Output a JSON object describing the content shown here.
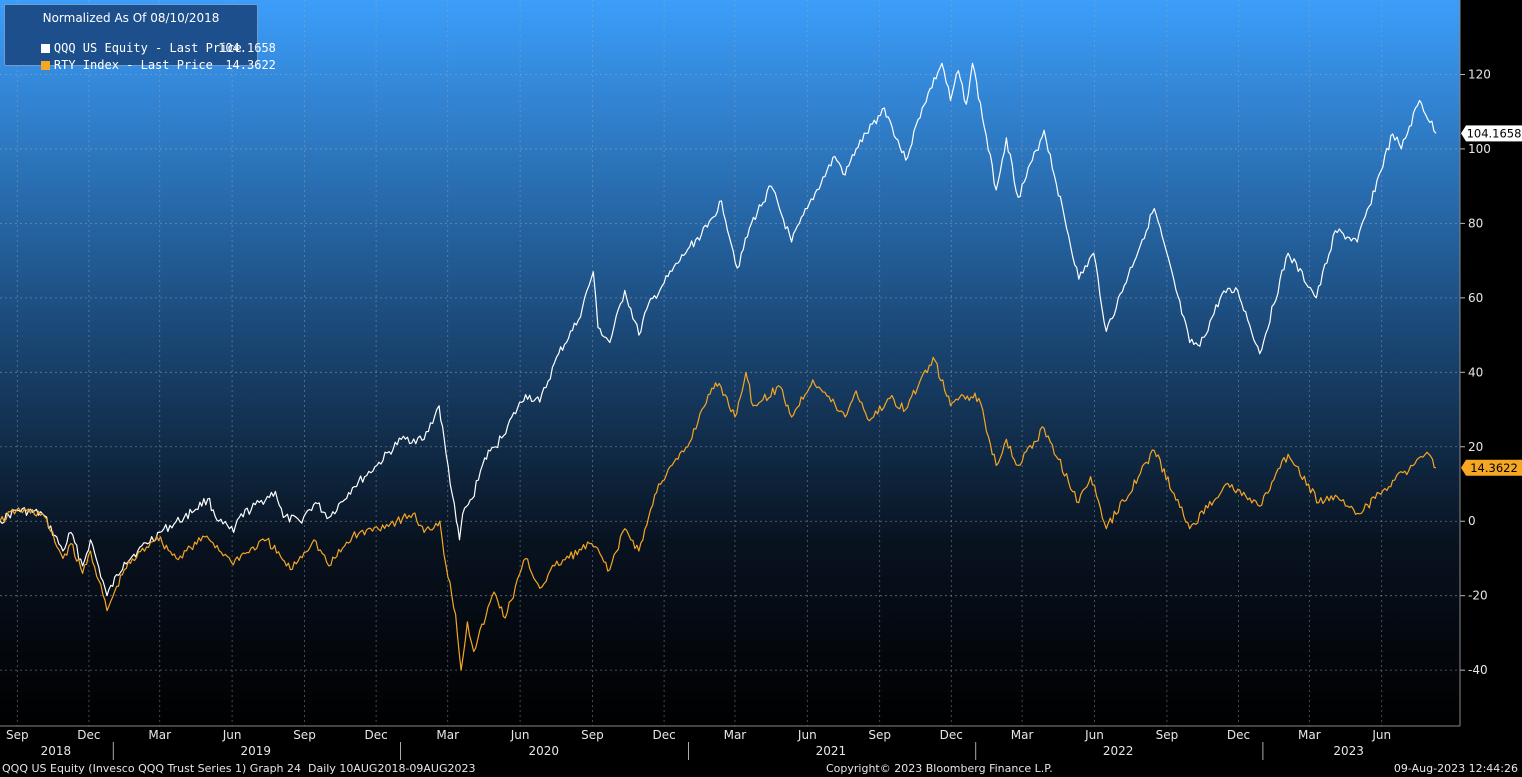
{
  "legend": {
    "title": "Normalized As Of 08/10/2018",
    "items": [
      {
        "name": "QQQ US Equity - Last Price",
        "value": "104.1658",
        "color": "#ffffff"
      },
      {
        "name": "RTY Index - Last Price",
        "value": "14.3622",
        "color": "#f5a623"
      }
    ]
  },
  "footer": {
    "left": "QQQ US Equity (Invesco QQQ Trust Series 1) Graph 24  Daily 10AUG2018-09AUG2023",
    "center": "Copyright© 2023 Bloomberg Finance L.P.",
    "right": "09-Aug-2023 12:44:26"
  },
  "chart_data": {
    "type": "line",
    "x_start": "2018-08-10",
    "x_end": "2023-08-09",
    "ylim": [
      -55,
      140
    ],
    "y_ticks": [
      -40,
      -20,
      0,
      20,
      40,
      60,
      80,
      100,
      120
    ],
    "grid": true,
    "legend_position": "top-left",
    "background_gradient": [
      "#3c9efa",
      "#000000"
    ],
    "month_ticks": [
      {
        "label": "Sep",
        "date": "2018-09-01"
      },
      {
        "label": "Dec",
        "date": "2018-12-01"
      },
      {
        "label": "Mar",
        "date": "2019-03-01"
      },
      {
        "label": "Jun",
        "date": "2019-06-01"
      },
      {
        "label": "Sep",
        "date": "2019-09-01"
      },
      {
        "label": "Dec",
        "date": "2019-12-01"
      },
      {
        "label": "Mar",
        "date": "2020-03-01"
      },
      {
        "label": "Jun",
        "date": "2020-06-01"
      },
      {
        "label": "Sep",
        "date": "2020-09-01"
      },
      {
        "label": "Dec",
        "date": "2020-12-01"
      },
      {
        "label": "Mar",
        "date": "2021-03-01"
      },
      {
        "label": "Jun",
        "date": "2021-06-01"
      },
      {
        "label": "Sep",
        "date": "2021-09-01"
      },
      {
        "label": "Dec",
        "date": "2021-12-01"
      },
      {
        "label": "Mar",
        "date": "2022-03-01"
      },
      {
        "label": "Jun",
        "date": "2022-06-01"
      },
      {
        "label": "Sep",
        "date": "2022-09-01"
      },
      {
        "label": "Dec",
        "date": "2022-12-01"
      },
      {
        "label": "Mar",
        "date": "2023-03-01"
      },
      {
        "label": "Jun",
        "date": "2023-06-01"
      }
    ],
    "year_labels": [
      {
        "label": "2018",
        "center": "2018-10-20",
        "boundary": "2019-01-01"
      },
      {
        "label": "2019",
        "center": "2019-07-01",
        "boundary": "2020-01-01"
      },
      {
        "label": "2020",
        "center": "2020-07-01",
        "boundary": "2021-01-01"
      },
      {
        "label": "2021",
        "center": "2021-07-01",
        "boundary": "2022-01-01"
      },
      {
        "label": "2022",
        "center": "2022-07-01",
        "boundary": "2023-01-01"
      },
      {
        "label": "2023",
        "center": "2023-04-20",
        "boundary": null
      }
    ],
    "series": [
      {
        "name": "QQQ US Equity - Last Price",
        "color": "#ffffff",
        "last_value": "104.1658",
        "points": [
          [
            "2018-08-10",
            0
          ],
          [
            "2018-08-31",
            3
          ],
          [
            "2018-10-03",
            2
          ],
          [
            "2018-10-29",
            -8
          ],
          [
            "2018-11-08",
            -3
          ],
          [
            "2018-11-23",
            -12
          ],
          [
            "2018-12-03",
            -5
          ],
          [
            "2018-12-24",
            -20
          ],
          [
            "2019-01-15",
            -11
          ],
          [
            "2019-02-01",
            -8
          ],
          [
            "2019-03-01",
            -3
          ],
          [
            "2019-04-01",
            1
          ],
          [
            "2019-05-01",
            6
          ],
          [
            "2019-05-15",
            0
          ],
          [
            "2019-06-03",
            -3
          ],
          [
            "2019-06-10",
            1
          ],
          [
            "2019-07-26",
            8
          ],
          [
            "2019-08-05",
            1
          ],
          [
            "2019-08-26",
            0
          ],
          [
            "2019-09-15",
            5
          ],
          [
            "2019-10-02",
            1
          ],
          [
            "2019-11-01",
            9
          ],
          [
            "2019-12-02",
            15
          ],
          [
            "2020-01-02",
            22
          ],
          [
            "2020-01-31",
            22
          ],
          [
            "2020-02-19",
            31
          ],
          [
            "2020-02-28",
            18
          ],
          [
            "2020-03-12",
            0
          ],
          [
            "2020-03-16",
            -5
          ],
          [
            "2020-03-20",
            2
          ],
          [
            "2020-04-01",
            6
          ],
          [
            "2020-04-17",
            17
          ],
          [
            "2020-05-01",
            20
          ],
          [
            "2020-06-08",
            34
          ],
          [
            "2020-06-26",
            32
          ],
          [
            "2020-07-20",
            45
          ],
          [
            "2020-08-14",
            54
          ],
          [
            "2020-09-02",
            67
          ],
          [
            "2020-09-08",
            52
          ],
          [
            "2020-09-23",
            48
          ],
          [
            "2020-10-12",
            62
          ],
          [
            "2020-10-30",
            50
          ],
          [
            "2020-11-09",
            57
          ],
          [
            "2020-12-01",
            64
          ],
          [
            "2020-12-31",
            73
          ],
          [
            "2021-01-25",
            79
          ],
          [
            "2021-02-12",
            86
          ],
          [
            "2021-03-04",
            68
          ],
          [
            "2021-03-22",
            80
          ],
          [
            "2021-04-16",
            90
          ],
          [
            "2021-05-12",
            75
          ],
          [
            "2021-06-01",
            84
          ],
          [
            "2021-07-06",
            98
          ],
          [
            "2021-07-19",
            93
          ],
          [
            "2021-08-02",
            100
          ],
          [
            "2021-09-07",
            111
          ],
          [
            "2021-10-04",
            97
          ],
          [
            "2021-10-25",
            111
          ],
          [
            "2021-11-19",
            123
          ],
          [
            "2021-11-30",
            113
          ],
          [
            "2021-12-10",
            121
          ],
          [
            "2021-12-20",
            112
          ],
          [
            "2021-12-28",
            123
          ],
          [
            "2022-01-27",
            89
          ],
          [
            "2022-02-09",
            103
          ],
          [
            "2022-02-24",
            87
          ],
          [
            "2022-03-29",
            105
          ],
          [
            "2022-05-12",
            65
          ],
          [
            "2022-05-31",
            72
          ],
          [
            "2022-06-16",
            51
          ],
          [
            "2022-08-16",
            84
          ],
          [
            "2022-09-30",
            48
          ],
          [
            "2022-10-13",
            47
          ],
          [
            "2022-11-10",
            61
          ],
          [
            "2022-11-30",
            62
          ],
          [
            "2022-12-28",
            45
          ],
          [
            "2023-02-02",
            72
          ],
          [
            "2023-03-10",
            60
          ],
          [
            "2023-04-03",
            78
          ],
          [
            "2023-05-01",
            75
          ],
          [
            "2023-06-15",
            104
          ],
          [
            "2023-06-26",
            100
          ],
          [
            "2023-07-19",
            113
          ],
          [
            "2023-08-09",
            104.1658
          ]
        ]
      },
      {
        "name": "RTY Index - Last Price",
        "color": "#f5a623",
        "last_value": "14.3622",
        "points": [
          [
            "2018-08-10",
            0
          ],
          [
            "2018-08-31",
            3
          ],
          [
            "2018-10-03",
            2
          ],
          [
            "2018-10-29",
            -10
          ],
          [
            "2018-11-08",
            -6
          ],
          [
            "2018-11-23",
            -14
          ],
          [
            "2018-12-03",
            -8
          ],
          [
            "2018-12-24",
            -24
          ],
          [
            "2019-01-15",
            -13
          ],
          [
            "2019-02-25",
            -4
          ],
          [
            "2019-03-22",
            -10
          ],
          [
            "2019-04-30",
            -4
          ],
          [
            "2019-05-31",
            -11
          ],
          [
            "2019-07-15",
            -5
          ],
          [
            "2019-08-14",
            -13
          ],
          [
            "2019-09-13",
            -5
          ],
          [
            "2019-10-02",
            -12
          ],
          [
            "2019-11-01",
            -4
          ],
          [
            "2019-12-27",
            0
          ],
          [
            "2020-01-17",
            2
          ],
          [
            "2020-01-31",
            -3
          ],
          [
            "2020-02-20",
            0
          ],
          [
            "2020-02-28",
            -12
          ],
          [
            "2020-03-11",
            -25
          ],
          [
            "2020-03-18",
            -40
          ],
          [
            "2020-03-26",
            -27
          ],
          [
            "2020-04-03",
            -35
          ],
          [
            "2020-04-29",
            -19
          ],
          [
            "2020-05-13",
            -26
          ],
          [
            "2020-06-08",
            -10
          ],
          [
            "2020-06-26",
            -18
          ],
          [
            "2020-07-15",
            -12
          ],
          [
            "2020-08-31",
            -6
          ],
          [
            "2020-09-23",
            -13
          ],
          [
            "2020-10-12",
            -2
          ],
          [
            "2020-10-30",
            -8
          ],
          [
            "2020-11-24",
            10
          ],
          [
            "2020-12-31",
            20
          ],
          [
            "2021-01-26",
            34
          ],
          [
            "2021-02-09",
            37
          ],
          [
            "2021-03-01",
            28
          ],
          [
            "2021-03-15",
            40
          ],
          [
            "2021-03-24",
            31
          ],
          [
            "2021-04-28",
            36
          ],
          [
            "2021-05-12",
            28
          ],
          [
            "2021-06-08",
            38
          ],
          [
            "2021-07-19",
            28
          ],
          [
            "2021-08-02",
            35
          ],
          [
            "2021-08-19",
            27
          ],
          [
            "2021-09-14",
            33
          ],
          [
            "2021-10-04",
            30
          ],
          [
            "2021-11-08",
            44
          ],
          [
            "2021-11-30",
            31
          ],
          [
            "2021-12-14",
            34
          ],
          [
            "2022-01-05",
            33
          ],
          [
            "2022-01-27",
            15
          ],
          [
            "2022-02-09",
            22
          ],
          [
            "2022-02-24",
            15
          ],
          [
            "2022-03-29",
            25
          ],
          [
            "2022-05-12",
            5
          ],
          [
            "2022-05-27",
            12
          ],
          [
            "2022-06-16",
            -2
          ],
          [
            "2022-08-16",
            19
          ],
          [
            "2022-09-30",
            -2
          ],
          [
            "2022-11-15",
            10
          ],
          [
            "2022-12-28",
            4
          ],
          [
            "2023-02-02",
            18
          ],
          [
            "2023-03-13",
            5
          ],
          [
            "2023-04-03",
            7
          ],
          [
            "2023-05-04",
            2
          ],
          [
            "2023-06-15",
            11
          ],
          [
            "2023-07-31",
            18
          ],
          [
            "2023-08-09",
            14.3622
          ]
        ]
      }
    ]
  }
}
